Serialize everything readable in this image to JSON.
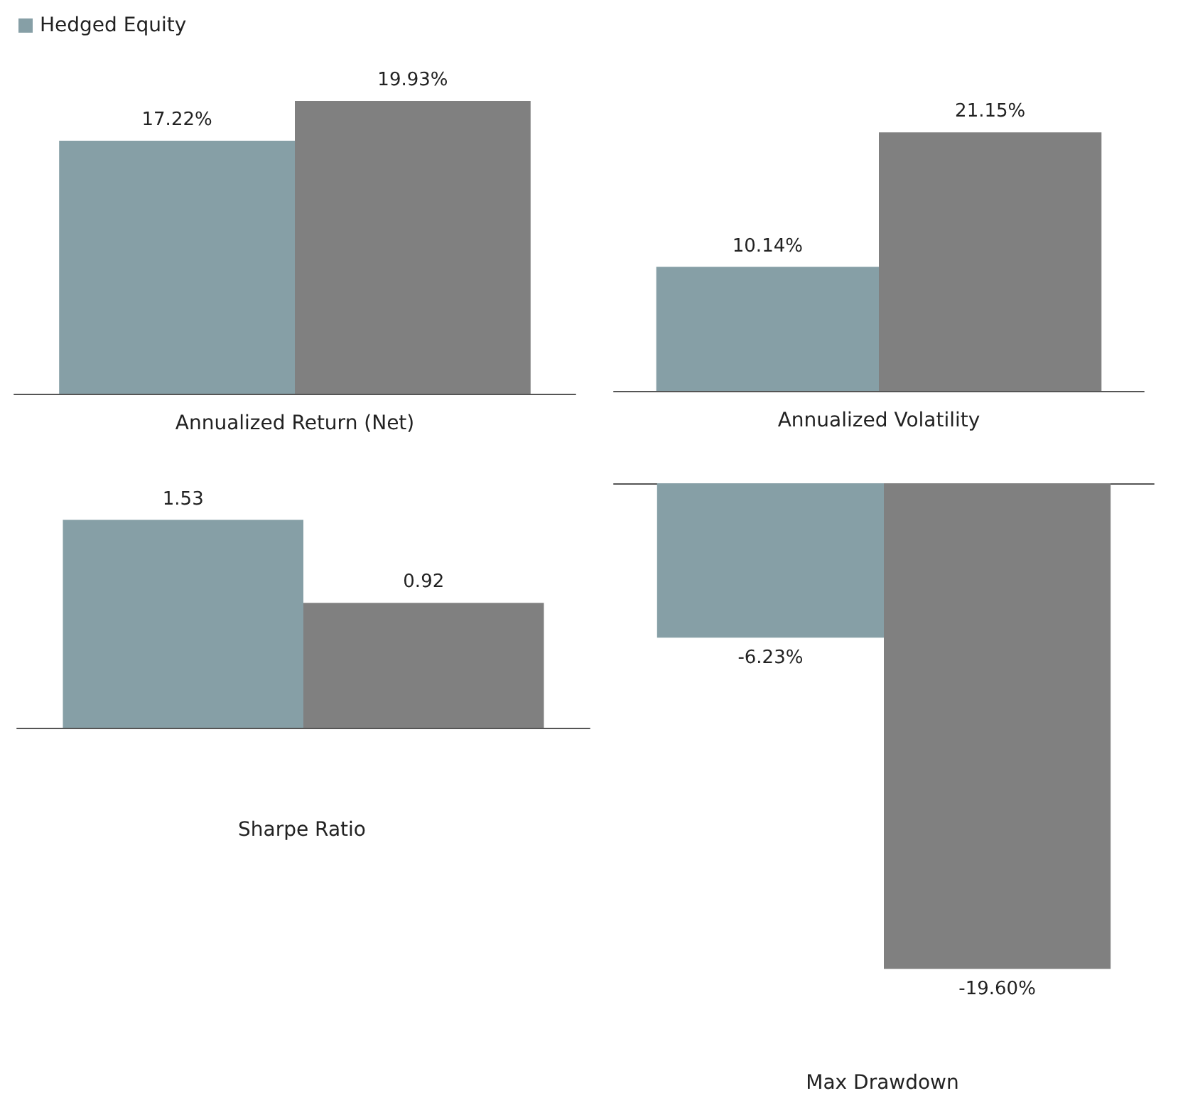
{
  "chart_data": [
    {
      "type": "bar",
      "xlabel": "Annualized Return (Net)",
      "categories": [
        null
      ],
      "grid": false,
      "legend": "top left",
      "series": [
        {
          "name": "Hedged Equity",
          "color": "#869fa6",
          "values": [
            17.22
          ],
          "value_labels": [
            "17.22%"
          ]
        },
        {
          "color": "#808080",
          "values": [
            19.93
          ],
          "value_labels": [
            "19.93%"
          ]
        }
      ]
    },
    {
      "type": "bar",
      "xlabel": "Annualized Volatility",
      "categories": [
        null
      ],
      "grid": false,
      "series": [
        {
          "color": "#869fa6",
          "values": [
            10.14
          ],
          "value_labels": [
            "10.14%"
          ]
        },
        {
          "color": "#808080",
          "values": [
            21.15
          ],
          "value_labels": [
            "21.15%"
          ]
        }
      ]
    },
    {
      "type": "bar",
      "xlabel": "Sharpe Ratio",
      "categories": [
        null
      ],
      "grid": false,
      "series": [
        {
          "color": "#869fa6",
          "values": [
            1.53
          ],
          "value_labels": [
            "1.53"
          ]
        },
        {
          "color": "#808080",
          "values": [
            0.92
          ],
          "value_labels": [
            "0.92"
          ]
        }
      ]
    },
    {
      "type": "bar",
      "xlabel": "Max Drawdown",
      "categories": [
        null
      ],
      "grid": false,
      "series": [
        {
          "color": "#869fa6",
          "values": [
            -6.23
          ],
          "value_labels": [
            "-6.23%"
          ]
        },
        {
          "color": "#808080",
          "values": [
            -19.6
          ],
          "value_labels": [
            "-19.60%"
          ]
        }
      ]
    }
  ]
}
